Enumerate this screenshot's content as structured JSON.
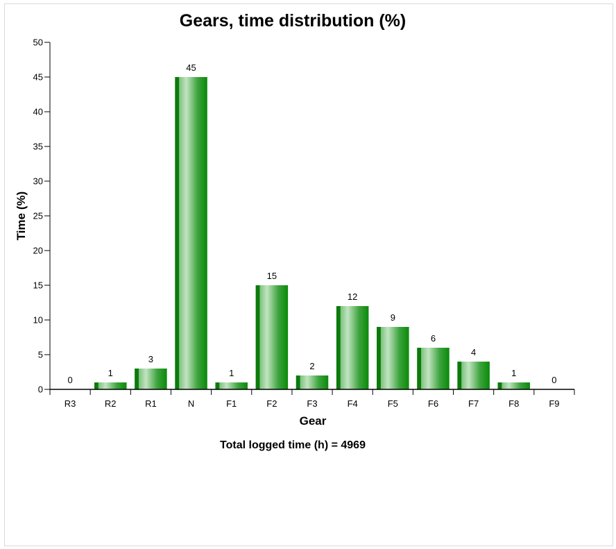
{
  "chart_data": {
    "type": "bar",
    "title": "Gears, time distribution (%)",
    "xlabel": "Gear",
    "ylabel": "Time (%)",
    "categories": [
      "R3",
      "R2",
      "R1",
      "N",
      "F1",
      "F2",
      "F3",
      "F4",
      "F5",
      "F6",
      "F7",
      "F8",
      "F9"
    ],
    "values": [
      0,
      1,
      3,
      45,
      1,
      15,
      2,
      12,
      9,
      6,
      4,
      1,
      0
    ],
    "ylim": [
      0,
      50
    ],
    "yticks": [
      0,
      5,
      10,
      15,
      20,
      25,
      30,
      35,
      40,
      45,
      50
    ],
    "grid": false,
    "legend": "none",
    "bar_color": "#0a8a0a",
    "bar_highlight": "#b5dcb5",
    "footnote": "Total logged time (h) = 4969"
  }
}
